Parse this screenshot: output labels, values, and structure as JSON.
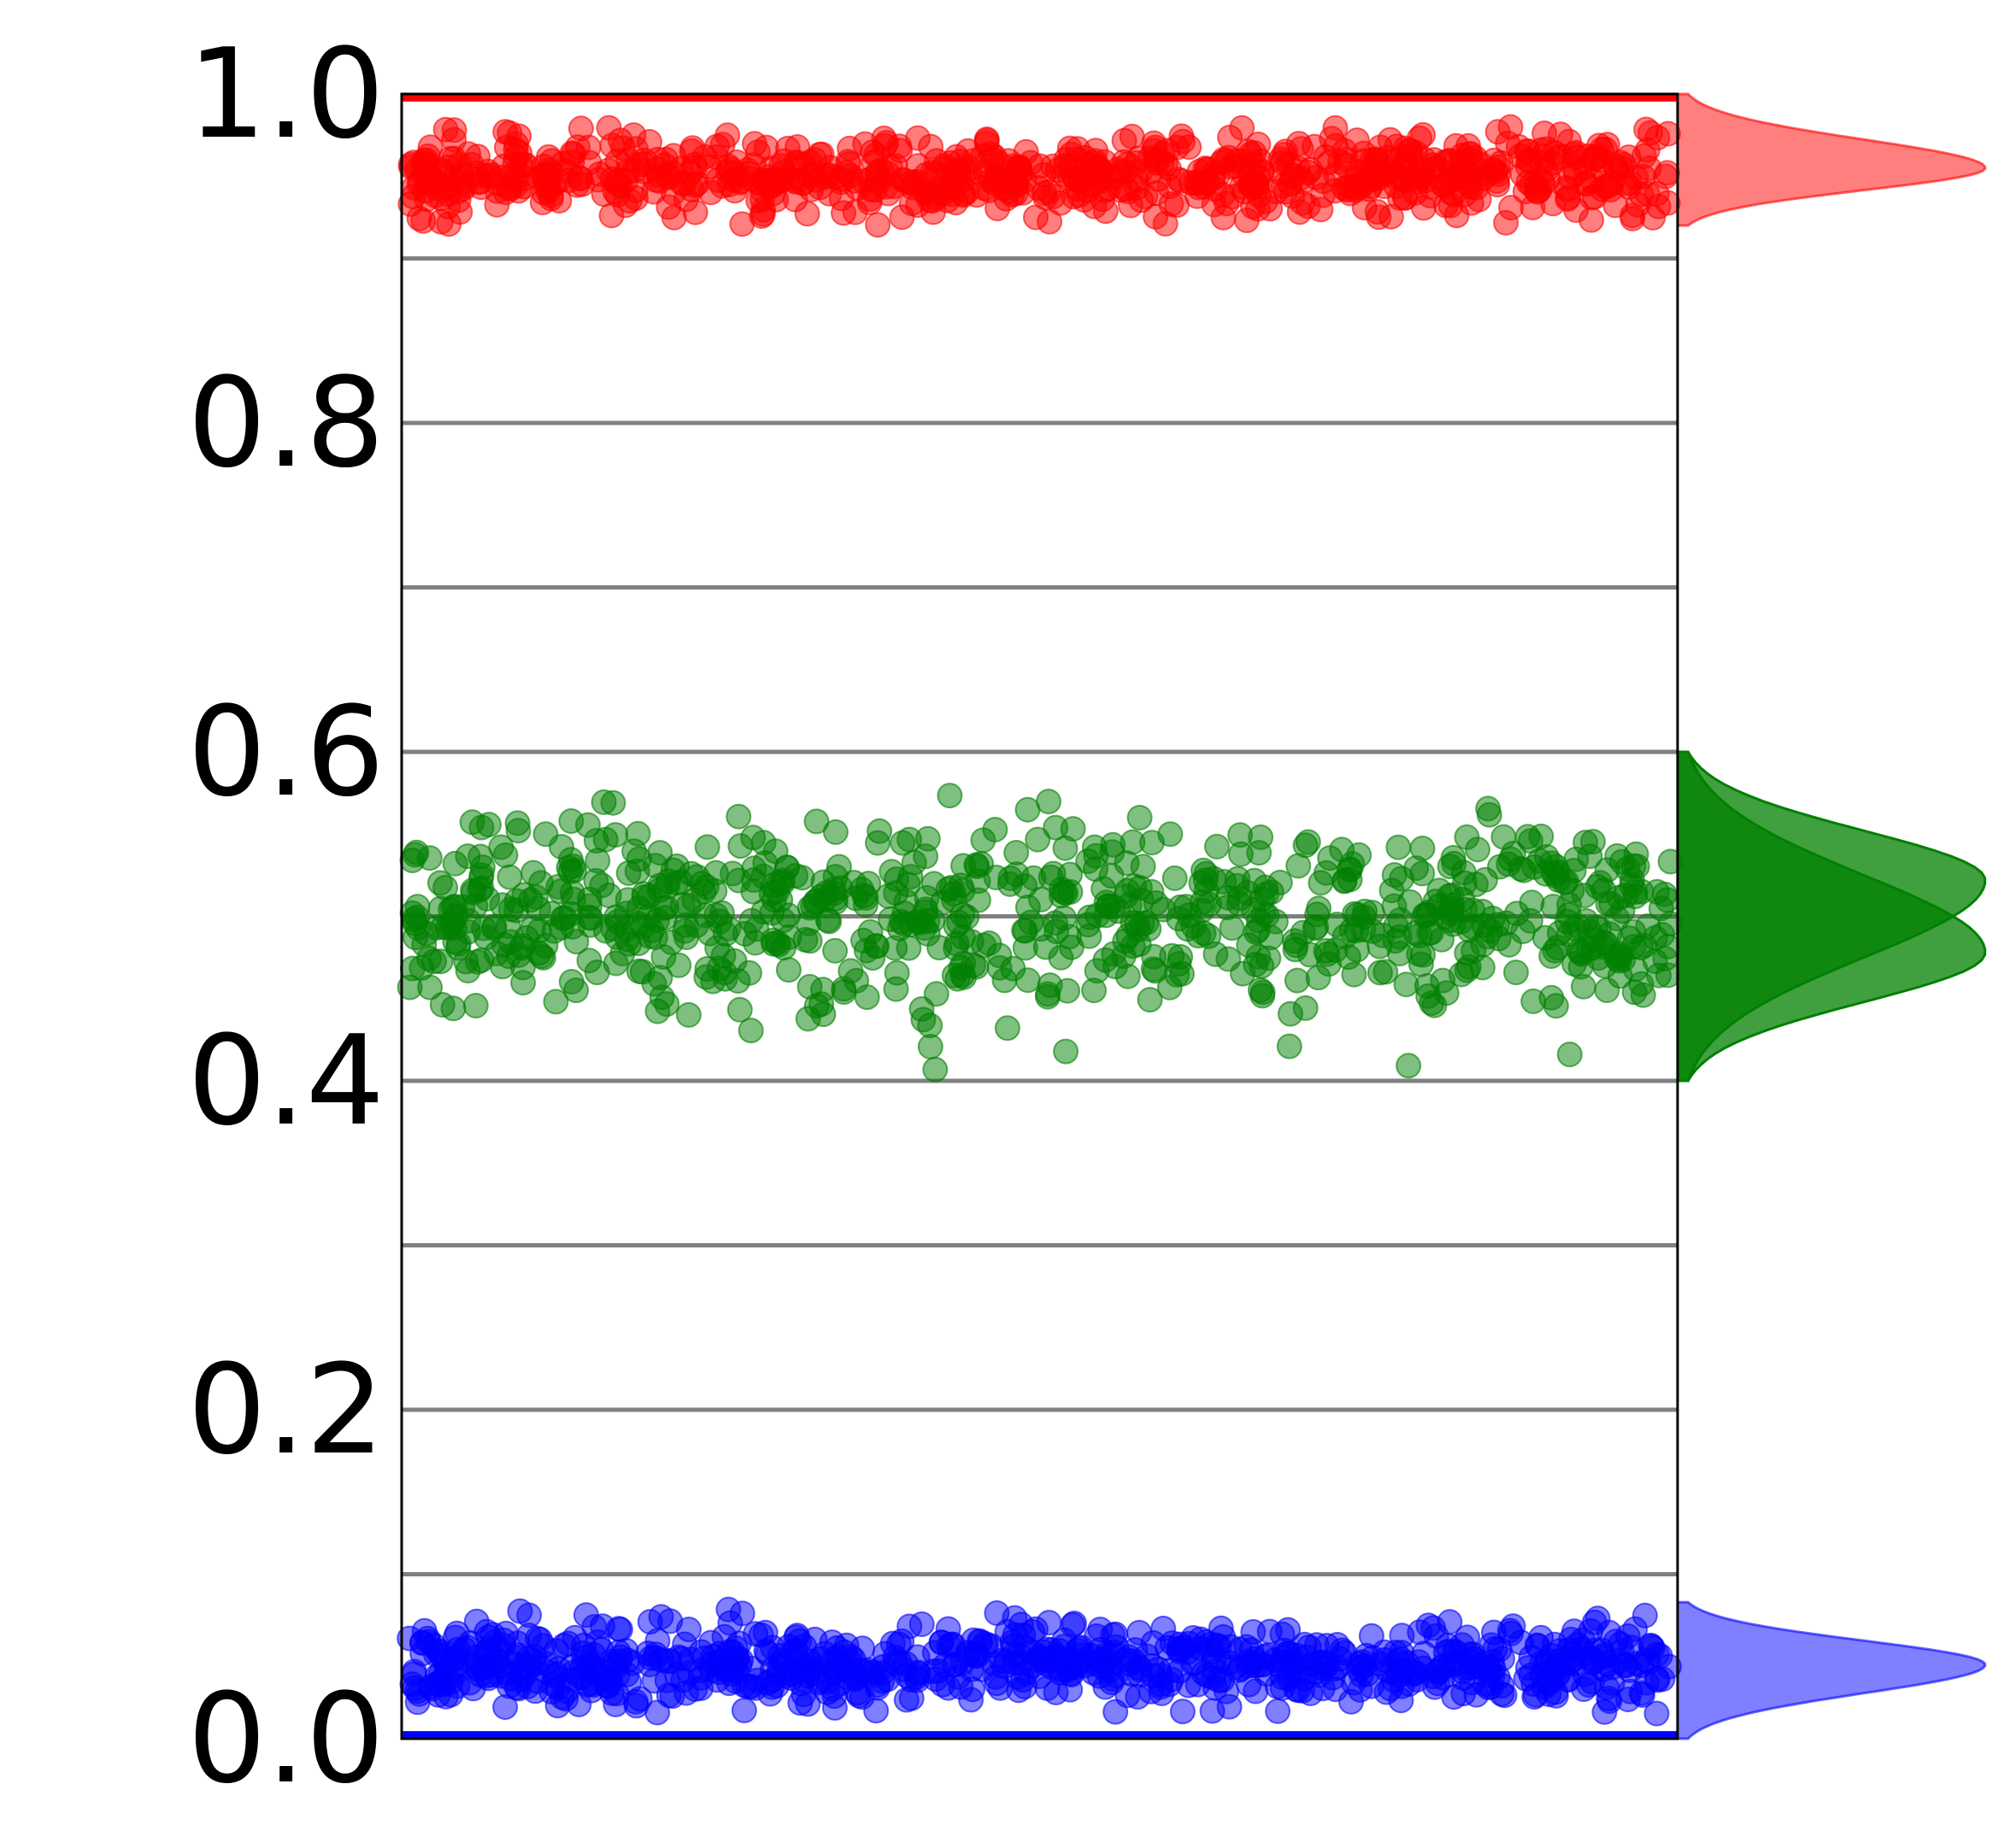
{
  "chart_data": {
    "type": "scatter",
    "title": "",
    "xlabel": "",
    "ylabel": "",
    "ylim": [
      0,
      1
    ],
    "y_ticks_labeled": [
      0.0,
      0.2,
      0.4,
      0.6,
      0.8,
      1.0
    ],
    "y_tick_labels": [
      "0.0",
      "0.2",
      "0.4",
      "0.6",
      "0.8",
      "1.0"
    ],
    "gridlines_y": [
      0.1,
      0.2,
      0.3,
      0.4,
      0.5,
      0.6,
      0.7,
      0.8,
      0.9
    ],
    "grid": true,
    "x_axis_labels_shown": false,
    "points_per_series": 800,
    "series": [
      {
        "color": "#ff0000",
        "scatter_center": 0.95,
        "scatter_spread": 0.012,
        "scatter_range": [
          0.92,
          0.98
        ],
        "boundary_line": 0.998,
        "kde_peak_y": 0.955,
        "kde_range": [
          0.92,
          1.0
        ]
      },
      {
        "color": "#008000",
        "scatter_center": 0.5,
        "scatter_spread": 0.028,
        "scatter_range": [
          0.405,
          0.58
        ],
        "kde_components": [
          {
            "peak_y": 0.522,
            "range": [
              0.4,
              0.6
            ]
          },
          {
            "peak_y": 0.478,
            "range": [
              0.4,
              0.6
            ]
          }
        ]
      },
      {
        "color": "#0000ff",
        "scatter_center": 0.045,
        "scatter_spread": 0.012,
        "scatter_range": [
          0.015,
          0.08
        ],
        "boundary_line": 0.002,
        "kde_peak_y": 0.045,
        "kde_range": [
          0.0,
          0.083
        ]
      }
    ]
  }
}
